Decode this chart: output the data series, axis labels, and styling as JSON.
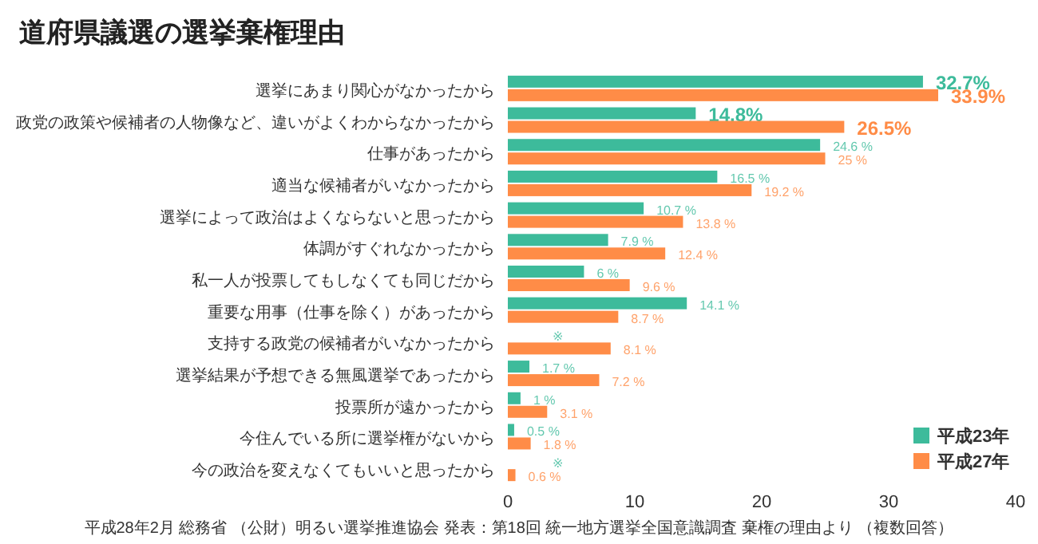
{
  "chart_data": {
    "type": "bar",
    "orientation": "horizontal",
    "title": "道府県議選の選挙棄権理由",
    "categories": [
      "選挙にあまり関心がなかったから",
      "政党の政策や候補者の人物像など、違いがよくわからなかったから",
      "仕事があったから",
      "適当な候補者がいなかったから",
      "選挙によって政治はよくならないと思ったから",
      "体調がすぐれなかったから",
      "私一人が投票してもしなくても同じだから",
      "重要な用事（仕事を除く）があったから",
      "支持する政党の候補者がいなかったから",
      "選挙結果が予想できる無風選挙であったから",
      "投票所が遠かったから",
      "今住んでいる所に選挙権がないから",
      "今の政治を変えなくてもいいと思ったから"
    ],
    "series": [
      {
        "name": "平成23年",
        "color": "#3dbb9b",
        "values": [
          32.7,
          14.8,
          24.6,
          16.5,
          10.7,
          7.9,
          6,
          14.1,
          null,
          1.7,
          1,
          0.5,
          null
        ],
        "value_labels": [
          "32.7%",
          "14.8%",
          "24.6 %",
          "16.5 %",
          "10.7 %",
          "7.9 %",
          "6 %",
          "14.1 %",
          "※",
          "1.7 %",
          "1 %",
          "0.5 %",
          "※"
        ]
      },
      {
        "name": "平成27年",
        "color": "#ff8c47",
        "values": [
          33.9,
          26.5,
          25,
          19.2,
          13.8,
          12.4,
          9.6,
          8.7,
          8.1,
          7.2,
          3.1,
          1.8,
          0.6
        ],
        "value_labels": [
          "33.9%",
          "26.5%",
          "25 %",
          "19.2 %",
          "13.8 %",
          "12.4 %",
          "9.6 %",
          "8.7 %",
          "8.1 %",
          "7.2 %",
          "3.1 %",
          "1.8 %",
          "0.6 %"
        ]
      }
    ],
    "xlim": [
      0,
      40
    ],
    "xticks": [
      0,
      10,
      20,
      30,
      40
    ],
    "grid": false,
    "legend": "bottom right",
    "annotations": [
      "平成28年2月 総務省 （公財）明るい選挙推進協会 発表：第18回 統一地方選挙全国意識調査 棄権の理由より （複数回答）"
    ]
  }
}
